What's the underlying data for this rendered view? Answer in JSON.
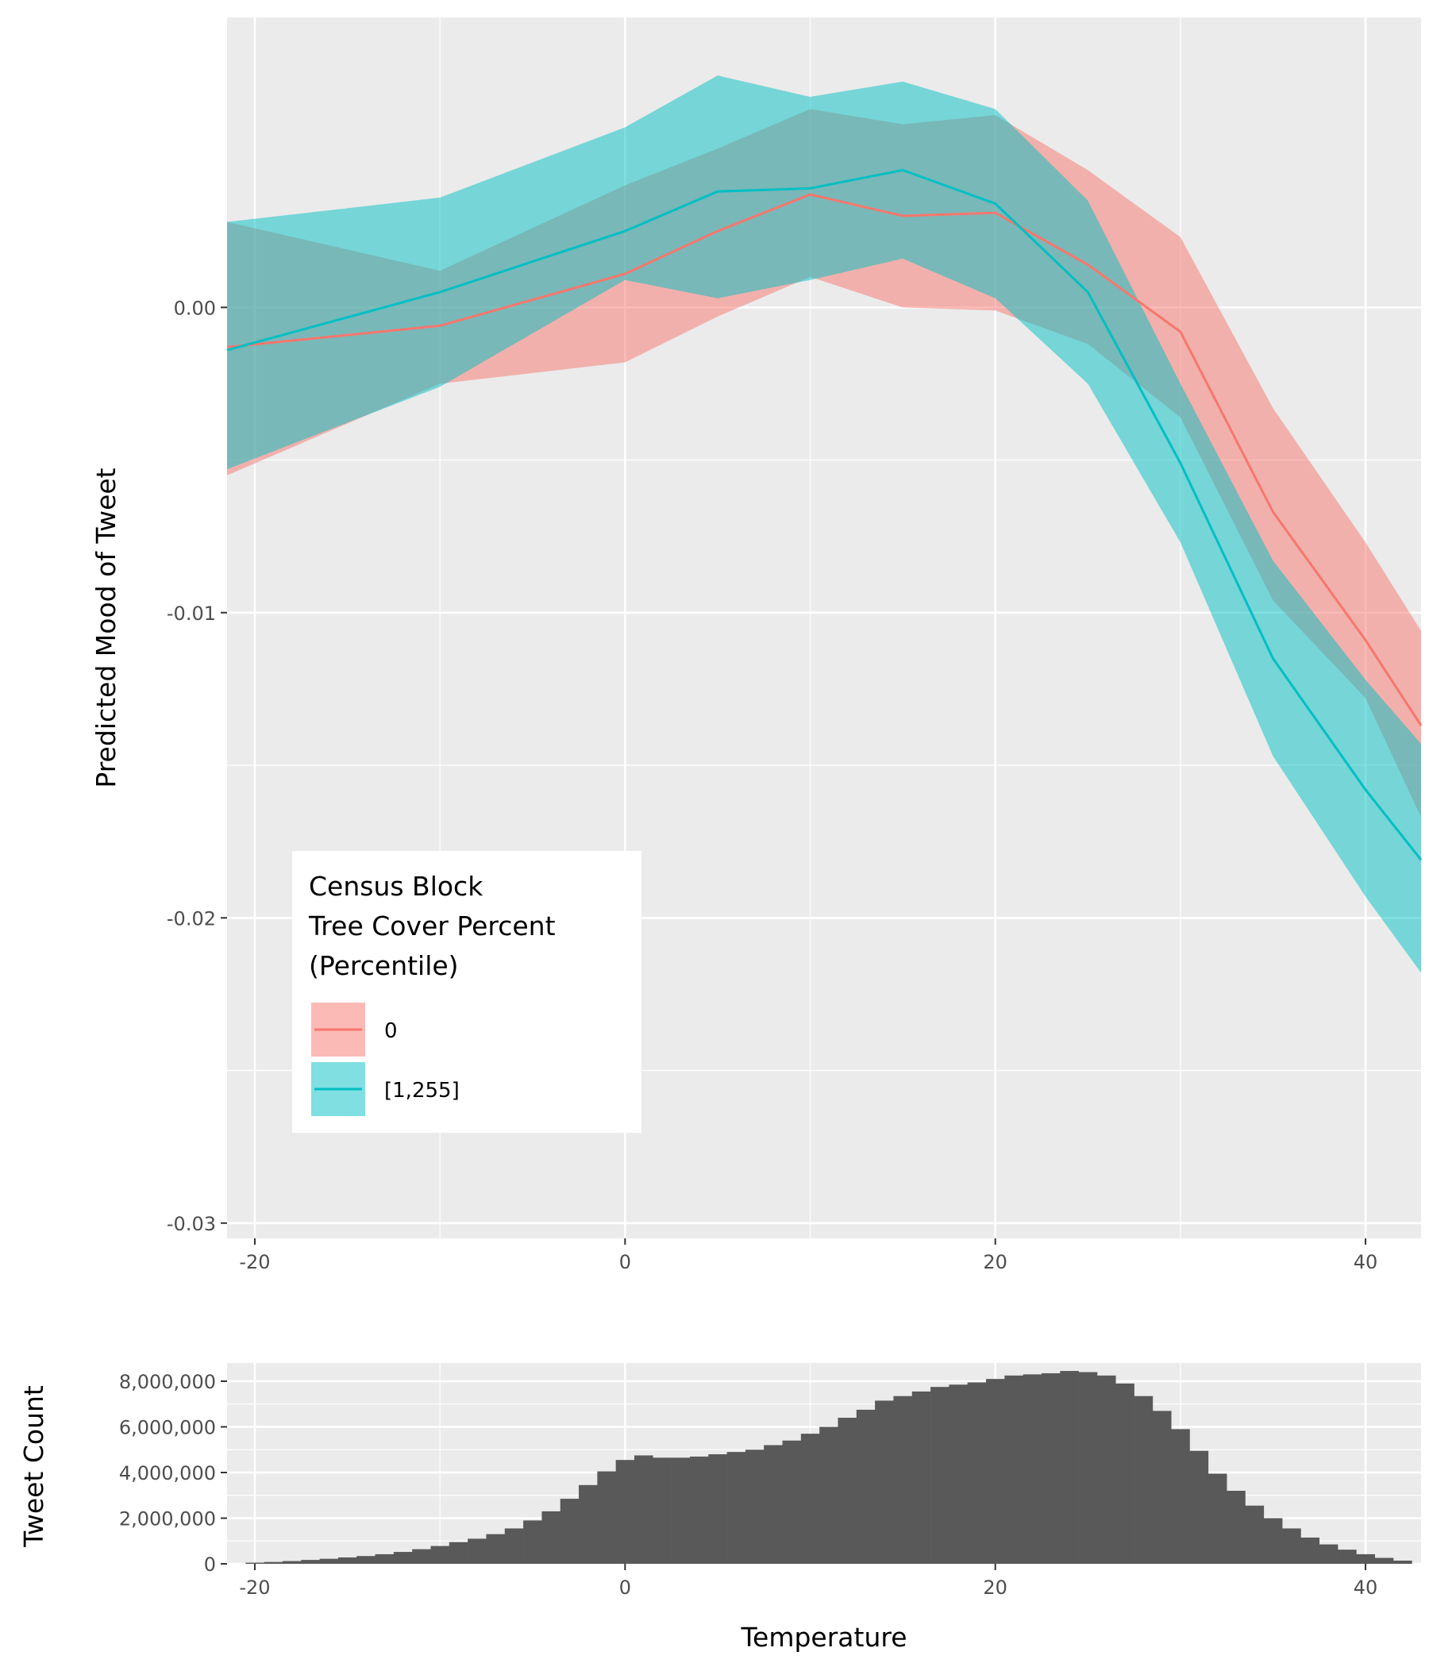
{
  "chart_data": [
    {
      "type": "line",
      "ylabel": "Predicted Mood of Tweet",
      "xlabel": "",
      "xlim": [
        -21.5,
        43
      ],
      "ylim": [
        -0.0305,
        0.0095
      ],
      "x_ticks": [
        -20,
        0,
        20,
        40
      ],
      "x_tick_labels": [
        "-20",
        "0",
        "20",
        "40"
      ],
      "y_ticks": [
        0.0,
        -0.01,
        -0.02,
        -0.03
      ],
      "y_tick_labels": [
        "0.00",
        "-0.01",
        "-0.02",
        "-0.03"
      ],
      "grid": true,
      "legend": {
        "title_lines": [
          "Census Block",
          "Tree Cover Percent",
          "(Percentile)"
        ],
        "position": "bottom-left"
      },
      "series": [
        {
          "name": "0",
          "color": "#F8766D",
          "x": [
            -21.5,
            -10,
            0,
            5,
            10,
            15,
            20,
            25,
            30,
            35,
            40,
            43
          ],
          "y": [
            -0.0013,
            -0.0006,
            0.0011,
            0.0025,
            0.0037,
            0.003,
            0.0031,
            0.0014,
            -0.0008,
            -0.0067,
            -0.0109,
            -0.0137
          ],
          "lower": [
            -0.0055,
            -0.0025,
            -0.0018,
            -0.0003,
            0.001,
            0.0,
            -0.0001,
            -0.0012,
            -0.0036,
            -0.0096,
            -0.0128,
            -0.0167
          ],
          "upper": [
            0.0028,
            0.0012,
            0.004,
            0.0052,
            0.0065,
            0.006,
            0.0063,
            0.0045,
            0.0023,
            -0.0033,
            -0.0077,
            -0.0106
          ]
        },
        {
          "name": "[1,255]",
          "color": "#00BFC4",
          "x": [
            -21.5,
            -10,
            0,
            5,
            10,
            15,
            20,
            25,
            30,
            35,
            40,
            43
          ],
          "y": [
            -0.0014,
            0.0005,
            0.0025,
            0.0038,
            0.0039,
            0.0045,
            0.0034,
            0.0005,
            -0.0051,
            -0.0115,
            -0.0158,
            -0.0181
          ],
          "lower": [
            -0.0053,
            -0.0026,
            0.0009,
            0.0003,
            0.0009,
            0.0016,
            0.0003,
            -0.0025,
            -0.0077,
            -0.0147,
            -0.0193,
            -0.0218
          ],
          "upper": [
            0.0028,
            0.0036,
            0.0059,
            0.0076,
            0.0069,
            0.0074,
            0.0065,
            0.0035,
            -0.0025,
            -0.0083,
            -0.0122,
            -0.0143
          ]
        }
      ]
    },
    {
      "type": "bar",
      "ylabel": "Tweet Count",
      "xlabel": "Temperature",
      "xlim": [
        -21.5,
        43
      ],
      "ylim": [
        0,
        8800000
      ],
      "x_ticks": [
        -20,
        0,
        20,
        40
      ],
      "x_tick_labels": [
        "-20",
        "0",
        "20",
        "40"
      ],
      "y_ticks": [
        0,
        2000000,
        4000000,
        6000000,
        8000000
      ],
      "y_tick_labels": [
        "0",
        "2,000,000",
        "4,000,000",
        "6,000,000",
        "8,000,000"
      ],
      "grid": true,
      "bin_width": 1,
      "bin_centers": [
        -20,
        -19,
        -18,
        -17,
        -16,
        -15,
        -14,
        -13,
        -12,
        -11,
        -10,
        -9,
        -8,
        -7,
        -6,
        -5,
        -4,
        -3,
        -2,
        -1,
        0,
        1,
        2,
        3,
        4,
        5,
        6,
        7,
        8,
        9,
        10,
        11,
        12,
        13,
        14,
        15,
        16,
        17,
        18,
        19,
        20,
        21,
        22,
        23,
        24,
        25,
        26,
        27,
        28,
        29,
        30,
        31,
        32,
        33,
        34,
        35,
        36,
        37,
        38,
        39,
        40,
        41,
        42
      ],
      "values": [
        50000,
        80000,
        120000,
        170000,
        220000,
        280000,
        340000,
        420000,
        520000,
        640000,
        780000,
        950000,
        1100000,
        1300000,
        1550000,
        1900000,
        2300000,
        2850000,
        3450000,
        4050000,
        4550000,
        4750000,
        4650000,
        4650000,
        4700000,
        4800000,
        4900000,
        5000000,
        5200000,
        5400000,
        5700000,
        6000000,
        6400000,
        6750000,
        7150000,
        7350000,
        7550000,
        7750000,
        7850000,
        7950000,
        8100000,
        8250000,
        8300000,
        8350000,
        8450000,
        8400000,
        8250000,
        7900000,
        7350000,
        6700000,
        5900000,
        4950000,
        3950000,
        3200000,
        2550000,
        2000000,
        1550000,
        1150000,
        850000,
        620000,
        420000,
        260000,
        140000
      ]
    }
  ]
}
